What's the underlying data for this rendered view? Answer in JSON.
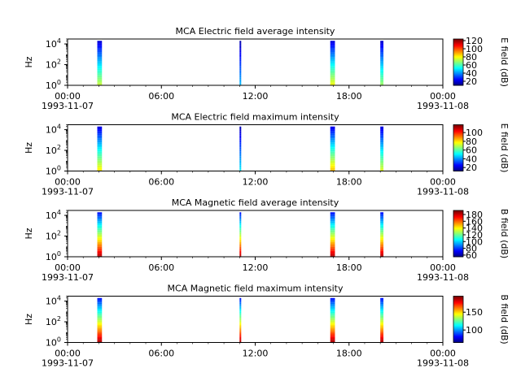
{
  "chart_data": [
    {
      "type": "heatmap",
      "title": "MCA  Electric field average intensity",
      "ylabel": "Hz",
      "yscale": "log",
      "ylim": [
        1,
        30000
      ],
      "y_ticks": [
        {
          "exp": "0",
          "value": 1
        },
        {
          "exp": "2",
          "value": 100
        },
        {
          "exp": "4",
          "value": 10000
        }
      ],
      "x_ticks": [
        "00:00",
        "06:00",
        "12:00",
        "18:00",
        "00:00"
      ],
      "x_dates": [
        "1993-11-07",
        "",
        "",
        "",
        "1993-11-08"
      ],
      "colorbar": {
        "label": "E field (dB)",
        "min": 10,
        "max": 124,
        "ticks": [
          "20",
          "40",
          "60",
          "80",
          "100",
          "120"
        ],
        "tick_values": [
          20,
          40,
          60,
          80,
          100,
          120
        ]
      },
      "passes": [
        {
          "start": 1.9,
          "end": 2.2,
          "fmin": 1,
          "fmax": 20000,
          "peak_db": 75
        },
        {
          "start": 11.0,
          "end": 11.1,
          "fmin": 1,
          "fmax": 20000,
          "peak_db": 45
        },
        {
          "start": 16.8,
          "end": 17.1,
          "fmin": 1,
          "fmax": 20000,
          "peak_db": 80
        },
        {
          "start": 20.0,
          "end": 20.2,
          "fmin": 1,
          "fmax": 20000,
          "peak_db": 70
        }
      ]
    },
    {
      "type": "heatmap",
      "title": "MCA  Electric field maximum intensity",
      "ylabel": "Hz",
      "yscale": "log",
      "ylim": [
        1,
        30000
      ],
      "y_ticks": [
        {
          "exp": "0",
          "value": 1
        },
        {
          "exp": "2",
          "value": 100
        },
        {
          "exp": "4",
          "value": 10000
        }
      ],
      "x_ticks": [
        "00:00",
        "06:00",
        "12:00",
        "18:00",
        "00:00"
      ],
      "x_dates": [
        "1993-11-07",
        "",
        "",
        "",
        "1993-11-08"
      ],
      "colorbar": {
        "label": "E field (dB)",
        "min": 12,
        "max": 118,
        "ticks": [
          "20",
          "40",
          "60",
          "80",
          "100"
        ],
        "tick_values": [
          20,
          40,
          60,
          80,
          100
        ]
      },
      "passes": [
        {
          "start": 1.9,
          "end": 2.2,
          "fmin": 1,
          "fmax": 20000,
          "peak_db": 80
        },
        {
          "start": 11.0,
          "end": 11.1,
          "fmin": 1,
          "fmax": 20000,
          "peak_db": 50
        },
        {
          "start": 16.8,
          "end": 17.1,
          "fmin": 1,
          "fmax": 20000,
          "peak_db": 85
        },
        {
          "start": 20.0,
          "end": 20.2,
          "fmin": 1,
          "fmax": 20000,
          "peak_db": 75
        }
      ]
    },
    {
      "type": "heatmap",
      "title": "MCA  Magnetic field average intensity",
      "ylabel": "Hz",
      "yscale": "log",
      "ylim": [
        1,
        30000
      ],
      "y_ticks": [
        {
          "exp": "0",
          "value": 1
        },
        {
          "exp": "2",
          "value": 100
        },
        {
          "exp": "4",
          "value": 10000
        }
      ],
      "x_ticks": [
        "00:00",
        "06:00",
        "12:00",
        "18:00",
        "00:00"
      ],
      "x_dates": [
        "1993-11-07",
        "",
        "",
        "",
        "1993-11-08"
      ],
      "colorbar": {
        "label": "B field (dB)",
        "min": 55,
        "max": 192,
        "ticks": [
          "60",
          "80",
          "100",
          "120",
          "140",
          "160",
          "180"
        ],
        "tick_values": [
          60,
          80,
          100,
          120,
          140,
          160,
          180
        ]
      },
      "passes": [
        {
          "start": 1.9,
          "end": 2.2,
          "fmin": 1,
          "fmax": 20000,
          "peak_db": 185
        },
        {
          "start": 11.0,
          "end": 11.1,
          "fmin": 1,
          "fmax": 20000,
          "peak_db": 185
        },
        {
          "start": 16.8,
          "end": 17.1,
          "fmin": 1,
          "fmax": 20000,
          "peak_db": 185
        },
        {
          "start": 20.0,
          "end": 20.2,
          "fmin": 1,
          "fmax": 20000,
          "peak_db": 185
        }
      ]
    },
    {
      "type": "heatmap",
      "title": "MCA  Magnetic field maximum intensity",
      "ylabel": "Hz",
      "yscale": "log",
      "ylim": [
        1,
        30000
      ],
      "y_ticks": [
        {
          "exp": "0",
          "value": 1
        },
        {
          "exp": "2",
          "value": 100
        },
        {
          "exp": "4",
          "value": 10000
        }
      ],
      "x_ticks": [
        "00:00",
        "06:00",
        "12:00",
        "18:00",
        "00:00"
      ],
      "x_dates": [
        "1993-11-07",
        "",
        "",
        "",
        "1993-11-08"
      ],
      "colorbar": {
        "label": "B field (dB)",
        "min": 65,
        "max": 195,
        "ticks": [
          "100",
          "150"
        ],
        "tick_values": [
          100,
          150
        ]
      },
      "passes": [
        {
          "start": 1.9,
          "end": 2.2,
          "fmin": 1,
          "fmax": 20000,
          "peak_db": 190
        },
        {
          "start": 11.0,
          "end": 11.1,
          "fmin": 1,
          "fmax": 20000,
          "peak_db": 190
        },
        {
          "start": 16.8,
          "end": 17.1,
          "fmin": 1,
          "fmax": 20000,
          "peak_db": 190
        },
        {
          "start": 20.0,
          "end": 20.2,
          "fmin": 1,
          "fmax": 20000,
          "peak_db": 190
        }
      ]
    }
  ]
}
